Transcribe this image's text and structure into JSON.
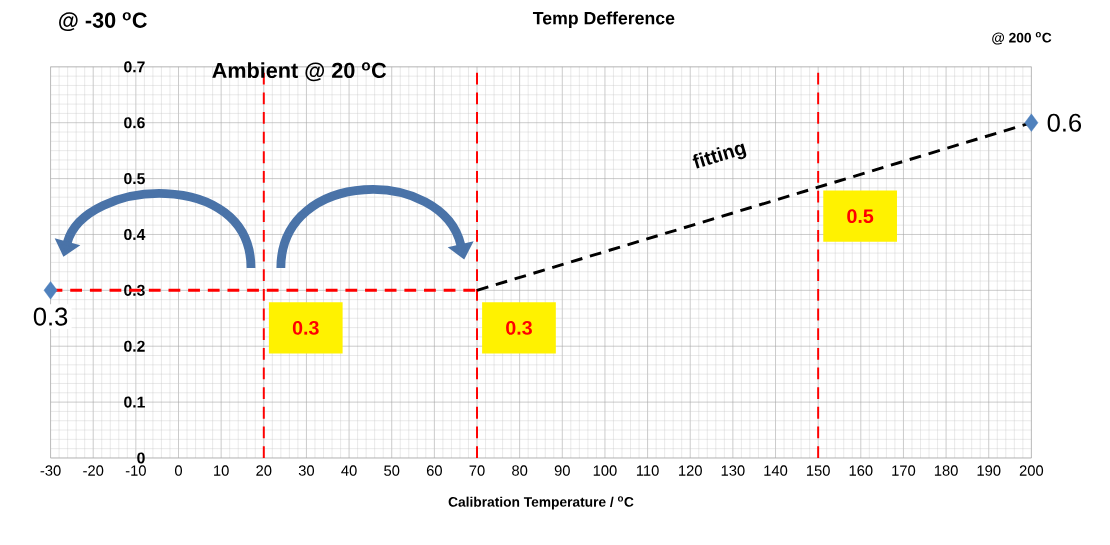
{
  "chart_data": {
    "type": "scatter",
    "title": "Temp Defference",
    "xlabel": "Calibration Temperature / $^{o}$C",
    "xlim": [
      -30,
      200
    ],
    "xticks": [
      -30,
      -20,
      -10,
      0,
      10,
      20,
      30,
      40,
      50,
      60,
      70,
      80,
      90,
      100,
      110,
      120,
      130,
      140,
      150,
      160,
      170,
      180,
      190,
      200
    ],
    "ylim": [
      0,
      0.7
    ],
    "yticks": [
      0,
      0.1,
      0.2,
      0.3,
      0.4,
      0.5,
      0.6,
      0.7
    ],
    "grid": true,
    "series": [
      {
        "type": "line",
        "color": "#ff0000",
        "line_style": "dashed",
        "marker": "none",
        "x": [
          -30,
          70
        ],
        "values": [
          0.3,
          0.3
        ]
      },
      {
        "type": "line",
        "color": "#000000",
        "line_style": "dashed",
        "marker": "none",
        "x": [
          70,
          200
        ],
        "values": [
          0.3,
          0.6
        ]
      },
      {
        "color": "#4f81bd",
        "marker": "diamond",
        "x": [
          -30,
          200
        ],
        "values": [
          0.3,
          0.6
        ],
        "value_labels": [
          "0.3",
          "0.6"
        ]
      }
    ],
    "ref_lines": [
      {
        "axis": "x",
        "value": 20,
        "color": "#ff0000",
        "line_style": "dashed"
      },
      {
        "axis": "x",
        "value": 70,
        "color": "#ff0000",
        "line_style": "dashed"
      },
      {
        "axis": "x",
        "value": 150,
        "color": "#ff0000",
        "line_style": "dashed"
      }
    ],
    "annotations": [
      "@ -30 $^{o}$C",
      "Ambient @ 20 $^{o}$C",
      "@  200 $^{o}$C",
      "fitting",
      {
        "text": "0.3",
        "x": 20,
        "y": 0.3
      },
      {
        "text": "0.3",
        "x": 70,
        "y": 0.3
      },
      {
        "text": "0.5",
        "x": 150,
        "y": 0.5
      }
    ]
  }
}
